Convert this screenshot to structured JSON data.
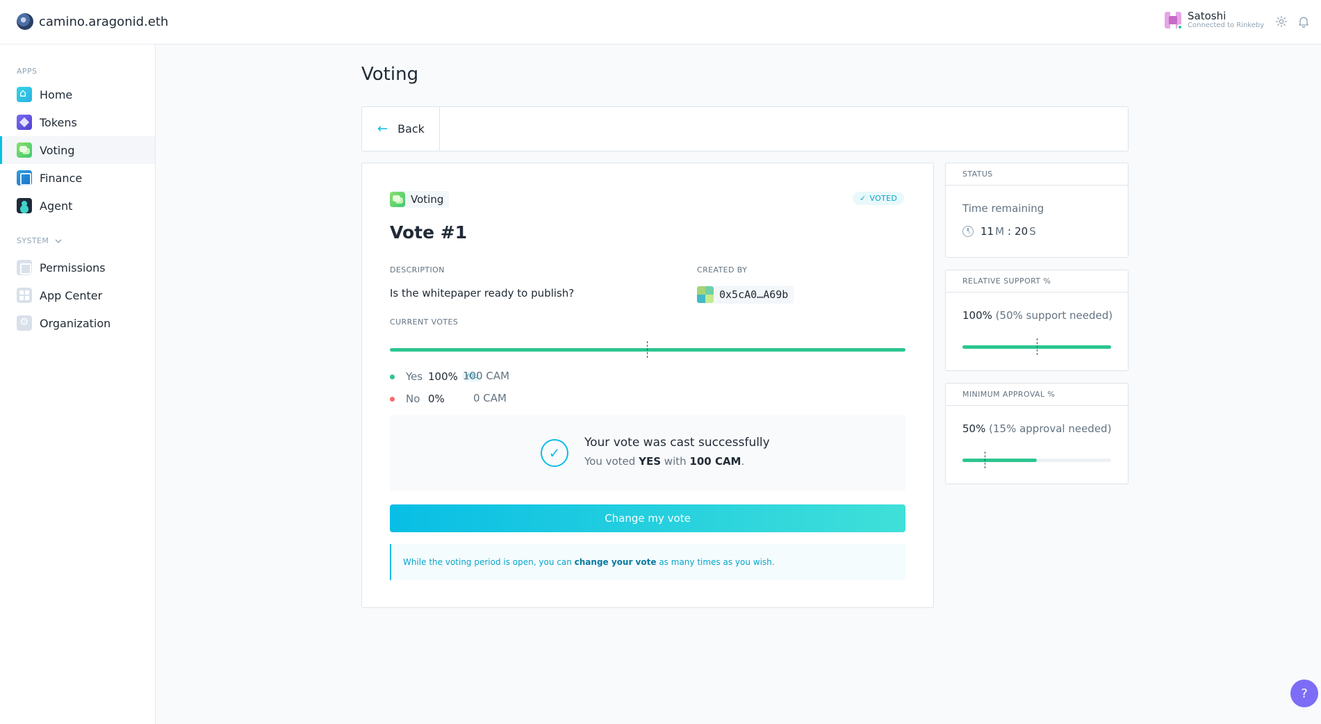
{
  "header": {
    "org_name": "camino.aragonid.eth",
    "user_name": "Satoshi",
    "user_network": "Connected to Rinkeby"
  },
  "sidebar": {
    "apps_label": "APPS",
    "system_label": "SYSTEM",
    "apps": [
      {
        "label": "Home",
        "icon": "home-icon"
      },
      {
        "label": "Tokens",
        "icon": "tokens-icon"
      },
      {
        "label": "Voting",
        "icon": "voting-icon"
      },
      {
        "label": "Finance",
        "icon": "finance-icon"
      },
      {
        "label": "Agent",
        "icon": "agent-icon"
      }
    ],
    "system": [
      {
        "label": "Permissions",
        "icon": "permissions-icon"
      },
      {
        "label": "App Center",
        "icon": "app-center-icon"
      },
      {
        "label": "Organization",
        "icon": "organization-icon"
      }
    ]
  },
  "main": {
    "page_title": "Voting",
    "back_label": "Back",
    "vote": {
      "app_label": "Voting",
      "voted_badge": "VOTED",
      "title": "Vote #1",
      "description_label": "DESCRIPTION",
      "description": "Is the whitepaper ready to publish?",
      "created_by_label": "CREATED BY",
      "creator_address": "0x5cA0…A69b",
      "current_votes_label": "CURRENT VOTES",
      "yes_share": 1.0,
      "yes": {
        "label": "Yes",
        "pct": "100%",
        "you": "YOU",
        "amount": "100 CAM"
      },
      "no": {
        "label": "No",
        "pct": "0%",
        "amount": "0 CAM"
      },
      "success_title": "Your vote was cast successfully",
      "success_prefix": "You voted",
      "success_choice": "YES",
      "success_with": "with",
      "success_amount": "100 CAM",
      "change_button": "Change my vote",
      "info_prefix": "While the voting period is open, you can",
      "info_link": "change your vote",
      "info_suffix": "as many times as you wish."
    }
  },
  "status_panel": {
    "head": "STATUS",
    "time_label": "Time remaining",
    "minutes": "11",
    "minutes_unit": "M",
    "separator": ":",
    "seconds": "20",
    "seconds_unit": "S"
  },
  "support_panel": {
    "head": "RELATIVE SUPPORT %",
    "value": "100%",
    "needed": "(50% support needed)",
    "fill": 1.0,
    "threshold": 0.5
  },
  "approval_panel": {
    "head": "MINIMUM APPROVAL %",
    "value": "50%",
    "needed": "(15% approval needed)",
    "fill": 0.5,
    "threshold": 0.15
  },
  "colors": {
    "accent": "#08bee5",
    "yes": "#2cc68f",
    "no": "#ff6969",
    "help_button": "#7d6cf6"
  },
  "help_label": "?"
}
